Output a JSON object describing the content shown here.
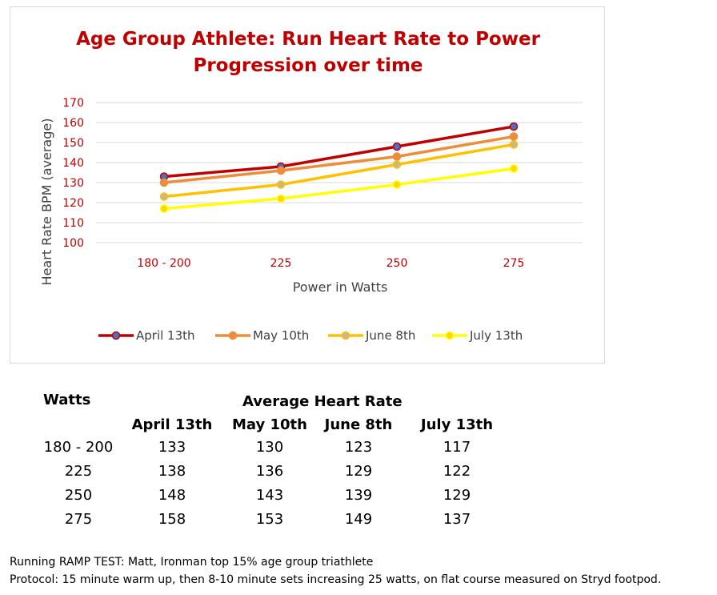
{
  "chart_data": {
    "type": "line",
    "title_lines": [
      "Age Group Athlete: Run Heart Rate to Power",
      "Progression over time"
    ],
    "categories": [
      "180 - 200",
      "225",
      "250",
      "275"
    ],
    "xlabel": "Power in Watts",
    "ylabel": "Heart Rate BPM (average)",
    "ylim": [
      100,
      170
    ],
    "yticks": [
      "100",
      "110",
      "120",
      "130",
      "140",
      "150",
      "160",
      "170"
    ],
    "grid": true,
    "legend_position": "bottom",
    "series": [
      {
        "name": "April 13th",
        "values": [
          133,
          138,
          148,
          158
        ],
        "line_color": "#c00000",
        "marker_color": "#4a6fc7"
      },
      {
        "name": "May 10th",
        "values": [
          130,
          136,
          143,
          153
        ],
        "line_color": "#ed8d3a",
        "marker_color": "#ed8d3a"
      },
      {
        "name": "June 8th",
        "values": [
          123,
          129,
          139,
          149
        ],
        "line_color": "#ffc000",
        "marker_color": "#c9b68a"
      },
      {
        "name": "July 13th",
        "values": [
          117,
          122,
          129,
          137
        ],
        "line_color": "#ffff00",
        "marker_color": "#ffd700"
      }
    ]
  },
  "table": {
    "watts_header": "Watts",
    "group_header": "Average Heart Rate",
    "columns": [
      "April 13th",
      "May 10th",
      "June 8th",
      "July 13th"
    ],
    "rows": [
      {
        "watts": "180 - 200",
        "values": [
          "133",
          "130",
          "123",
          "117"
        ]
      },
      {
        "watts": "225",
        "values": [
          "138",
          "136",
          "129",
          "122"
        ]
      },
      {
        "watts": "250",
        "values": [
          "148",
          "143",
          "139",
          "129"
        ]
      },
      {
        "watts": "275",
        "values": [
          "158",
          "153",
          "149",
          "137"
        ]
      }
    ]
  },
  "notes": {
    "line1": "Running RAMP TEST: Matt, Ironman top 15% age group triathlete",
    "line2": "Protocol: 15 minute warm up, then 8-10 minute sets increasing 25 watts, on flat course measured on Stryd footpod."
  }
}
